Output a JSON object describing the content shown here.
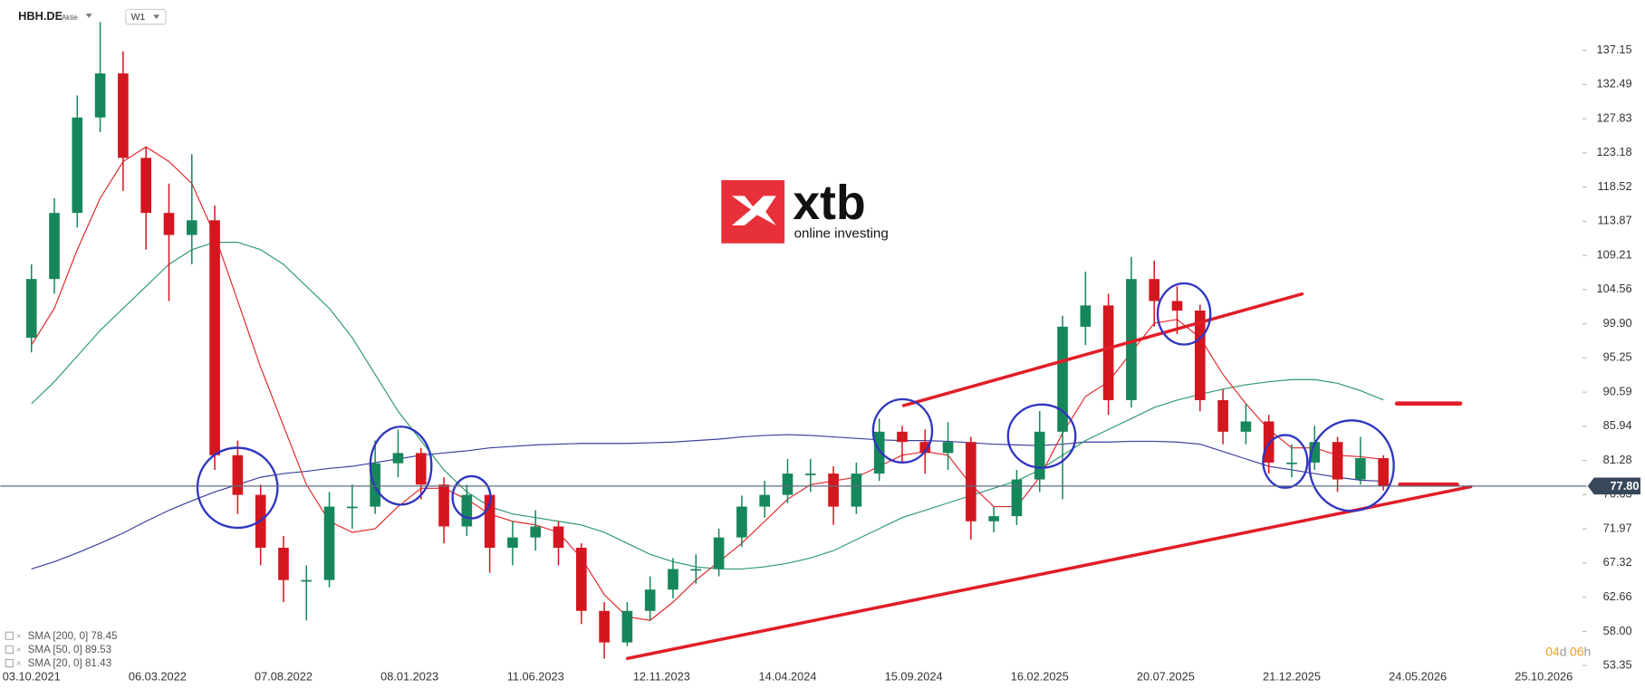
{
  "header": {
    "symbol": "HBH.DE",
    "instrument_type": "Aktie",
    "interval": "W1"
  },
  "logo": {
    "brand": "xtb",
    "tagline": "online investing"
  },
  "countdown": {
    "days": "04",
    "day_unit": "d",
    "hours": "06",
    "hour_unit": "h"
  },
  "chart_data": {
    "type": "candlestick",
    "x": [
      "03.10.2021",
      "31.10.2021",
      "28.11.2021",
      "26.12.2021",
      "23.01.2022",
      "20.02.2022",
      "20.03.2022",
      "17.04.2022",
      "15.05.2022",
      "12.06.2022",
      "10.07.2022",
      "07.08.2022",
      "04.09.2022",
      "02.10.2022",
      "30.10.2022",
      "27.11.2022",
      "25.12.2022",
      "22.01.2023",
      "19.02.2023",
      "19.03.2023",
      "16.04.2023",
      "14.05.2023",
      "11.06.2023",
      "09.07.2023",
      "06.08.2023",
      "03.09.2023",
      "01.10.2023",
      "29.10.2023",
      "26.11.2023",
      "24.12.2023",
      "21.01.2024",
      "18.02.2024",
      "17.03.2024",
      "14.04.2024",
      "12.05.2024",
      "09.06.2024",
      "07.07.2024",
      "04.08.2024",
      "01.09.2024",
      "29.09.2024",
      "27.10.2024",
      "24.11.2024",
      "22.12.2024",
      "19.01.2025",
      "16.02.2025",
      "16.03.2025",
      "13.04.2025",
      "11.05.2025",
      "08.06.2025",
      "06.07.2025",
      "03.08.2025",
      "31.08.2025",
      "28.09.2025",
      "26.10.2025",
      "23.11.2025",
      "21.12.2025",
      "18.01.2026",
      "15.02.2026",
      "15.03.2026",
      "12.04.2026"
    ],
    "open": [
      98,
      106,
      115,
      128,
      134,
      122.5,
      115,
      112,
      114,
      82,
      76.6,
      69.4,
      65,
      65,
      75,
      75,
      80.9,
      82.3,
      78,
      72.3,
      76.6,
      69.4,
      70.8,
      72.3,
      69.4,
      60.8,
      56.5,
      60.8,
      63.7,
      66.5,
      66.5,
      70.8,
      75,
      76.6,
      79.5,
      79.5,
      75,
      79.5,
      85.2,
      83.8,
      82.3,
      83.8,
      73,
      73.7,
      78.7,
      85.2,
      99.5,
      102.4,
      89.5,
      106,
      103,
      101.7,
      89.5,
      85.2,
      86.6,
      81,
      81,
      83.8,
      78.7,
      81.6
    ],
    "high": [
      108,
      117,
      131,
      141,
      137,
      124,
      119,
      123,
      116,
      84,
      78,
      71,
      67,
      77,
      78,
      84,
      85.5,
      83,
      79,
      78,
      77,
      73,
      74.5,
      73,
      70,
      62,
      62,
      65.5,
      68,
      68.5,
      72,
      76.5,
      78.5,
      81.5,
      81.5,
      80.5,
      81,
      87,
      86,
      85.5,
      86.5,
      84.5,
      75,
      80,
      88,
      101,
      107,
      104,
      109,
      108.5,
      105,
      102.5,
      91,
      89,
      87.5,
      83.5,
      86,
      84.5,
      84.5,
      82
    ],
    "low": [
      96,
      104,
      113,
      126,
      118,
      110,
      103,
      108,
      80,
      74,
      67,
      62,
      59.5,
      64,
      72,
      74,
      79,
      76,
      70,
      71,
      66,
      67,
      69,
      67,
      59,
      54.3,
      56,
      59.5,
      62.5,
      64.5,
      65.5,
      69.5,
      73.5,
      75.5,
      77,
      72.5,
      74,
      78.5,
      81,
      79.5,
      80,
      70.5,
      71.5,
      72.5,
      77,
      76,
      97,
      87.5,
      88.5,
      99.5,
      98.5,
      88,
      83.5,
      83.5,
      79.5,
      79,
      80,
      77,
      78,
      77.2
    ],
    "close": [
      106,
      115,
      128,
      134,
      122.5,
      115,
      112,
      114,
      82,
      76.6,
      69.4,
      65,
      65,
      75,
      75,
      80.9,
      82.3,
      78,
      72.3,
      76.6,
      69.4,
      70.8,
      72.3,
      69.4,
      60.8,
      56.5,
      60.8,
      63.7,
      66.5,
      66.5,
      70.8,
      75,
      76.6,
      79.5,
      79.5,
      75,
      79.5,
      85.2,
      83.8,
      82.3,
      83.8,
      73,
      73.7,
      78.7,
      85.2,
      99.5,
      102.4,
      89.5,
      106,
      103,
      101.7,
      89.5,
      85.2,
      86.6,
      81,
      81,
      83.8,
      78.7,
      81.6,
      77.8
    ],
    "up_color": "#16875a",
    "down_color": "#d4161f",
    "series": [
      {
        "name": "SMA [200, 0] 78.45",
        "color": "#3b3f9c",
        "values": [
          66.5,
          67.5,
          68.7,
          70,
          71.4,
          73,
          74.5,
          75.8,
          77,
          78,
          79,
          79.5,
          79.8,
          80.2,
          80.5,
          81,
          81.5,
          82,
          82.3,
          82.6,
          83,
          83.2,
          83.4,
          83.5,
          83.6,
          83.6,
          83.6,
          83.7,
          83.8,
          84,
          84.2,
          84.5,
          84.7,
          84.8,
          84.7,
          84.5,
          84.3,
          84.1,
          84,
          84,
          83.9,
          83.7,
          83.5,
          83.4,
          83.3,
          83.5,
          83.8,
          83.8,
          83.9,
          83.9,
          83.8,
          83.5,
          82.5,
          81.5,
          80.5,
          80,
          79.5,
          79,
          78.6,
          78.45
        ]
      },
      {
        "name": "SMA [50, 0] 89.53",
        "color": "#2e9a6a",
        "values": [
          89,
          92,
          95.5,
          99,
          102,
          105,
          108,
          110,
          111,
          111,
          110,
          108,
          105,
          102,
          98,
          93,
          88,
          84,
          80,
          77,
          75,
          74,
          73.5,
          73,
          72.5,
          71.5,
          70,
          68.5,
          67.5,
          66.8,
          66.5,
          66.5,
          66.8,
          67.3,
          68,
          69,
          70.5,
          72,
          73.5,
          74.5,
          75.5,
          76.5,
          77.5,
          78.5,
          80,
          82,
          84,
          85.5,
          87,
          88.5,
          89.5,
          90.3,
          91,
          91.6,
          92,
          92.3,
          92.3,
          91.8,
          90.8,
          89.53
        ]
      },
      {
        "name": "SMA [20, 0] 81.43",
        "color": "#e0262b",
        "values": [
          97,
          102,
          110,
          117,
          122,
          124,
          122,
          119,
          112,
          103,
          94,
          86,
          78,
          73,
          71.5,
          72,
          75,
          77.5,
          77.5,
          76,
          74,
          73,
          72.5,
          71.5,
          68,
          63,
          60,
          59.5,
          62,
          65,
          67.5,
          70,
          73,
          76,
          78,
          78.5,
          79,
          80.5,
          82,
          82.5,
          82,
          78,
          75,
          75,
          79,
          85,
          90,
          92,
          96,
          100,
          100.5,
          98,
          93,
          89,
          85.5,
          83,
          83,
          82,
          81.8,
          81.43
        ]
      }
    ],
    "last_price": {
      "value": 77.8,
      "label": "77.80"
    },
    "ylim": [
      52.6,
      144.0
    ],
    "yticks": [
      {
        "value": 53.35,
        "label": "53.35"
      },
      {
        "value": 58,
        "label": "58.00"
      },
      62.66,
      67.32,
      71.97,
      76.63,
      81.28,
      85.94,
      {
        "value": 90.59,
        "label": "90.59"
      },
      95.25,
      {
        "value": 99.9,
        "label": "99.90"
      },
      104.56,
      109.21,
      113.87,
      118.52,
      123.18,
      127.83,
      132.49,
      137.15
    ],
    "xlim": [
      "26.08.2021",
      "10.12.2026"
    ],
    "xticks": [
      "03.10.2021",
      "06.03.2022",
      "07.08.2022",
      "08.01.2023",
      "11.06.2023",
      "12.11.2023",
      "14.04.2024",
      "15.09.2024",
      "16.02.2025",
      "20.07.2025",
      "21.12.2025",
      "24.05.2026",
      "25.10.2026"
    ],
    "grid": false
  }
}
